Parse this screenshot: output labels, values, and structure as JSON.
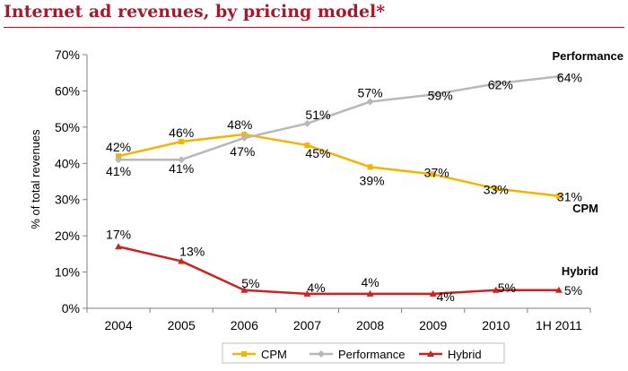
{
  "chart_data": {
    "type": "line",
    "title": "Internet ad revenues, by pricing model*",
    "xlabel": "",
    "ylabel": "% of total revenues",
    "ylim": [
      0,
      70
    ],
    "yticks": [
      "0%",
      "10%",
      "20%",
      "30%",
      "40%",
      "50%",
      "60%",
      "70%"
    ],
    "categories": [
      "2004",
      "2005",
      "2006",
      "2007",
      "2008",
      "2009",
      "2010",
      "1H 2011"
    ],
    "grid": false,
    "legend": "bottom",
    "series": [
      {
        "name": "CPM",
        "color": "#f5b400",
        "marker": "square",
        "values": [
          42,
          46,
          48,
          45,
          39,
          37,
          33,
          31
        ],
        "labels": [
          "42%",
          "46%",
          "48%",
          "45%",
          "39%",
          "37%",
          "33%",
          "31%"
        ],
        "end_label": "CPM"
      },
      {
        "name": "Performance",
        "color": "#b8b8b8",
        "marker": "diamond",
        "values": [
          41,
          41,
          47,
          51,
          57,
          59,
          62,
          64
        ],
        "labels": [
          "41%",
          "41%",
          "47%",
          "51%",
          "57%",
          "59%",
          "62%",
          "64%"
        ],
        "end_label": "Performance"
      },
      {
        "name": "Hybrid",
        "color": "#cc2222",
        "marker": "triangle",
        "values": [
          17,
          13,
          5,
          4,
          4,
          4,
          5,
          5
        ],
        "labels": [
          "17%",
          "13%",
          "5%",
          "4%",
          "4%",
          "4%",
          "5%",
          "5%"
        ],
        "end_label": "Hybrid"
      }
    ]
  }
}
